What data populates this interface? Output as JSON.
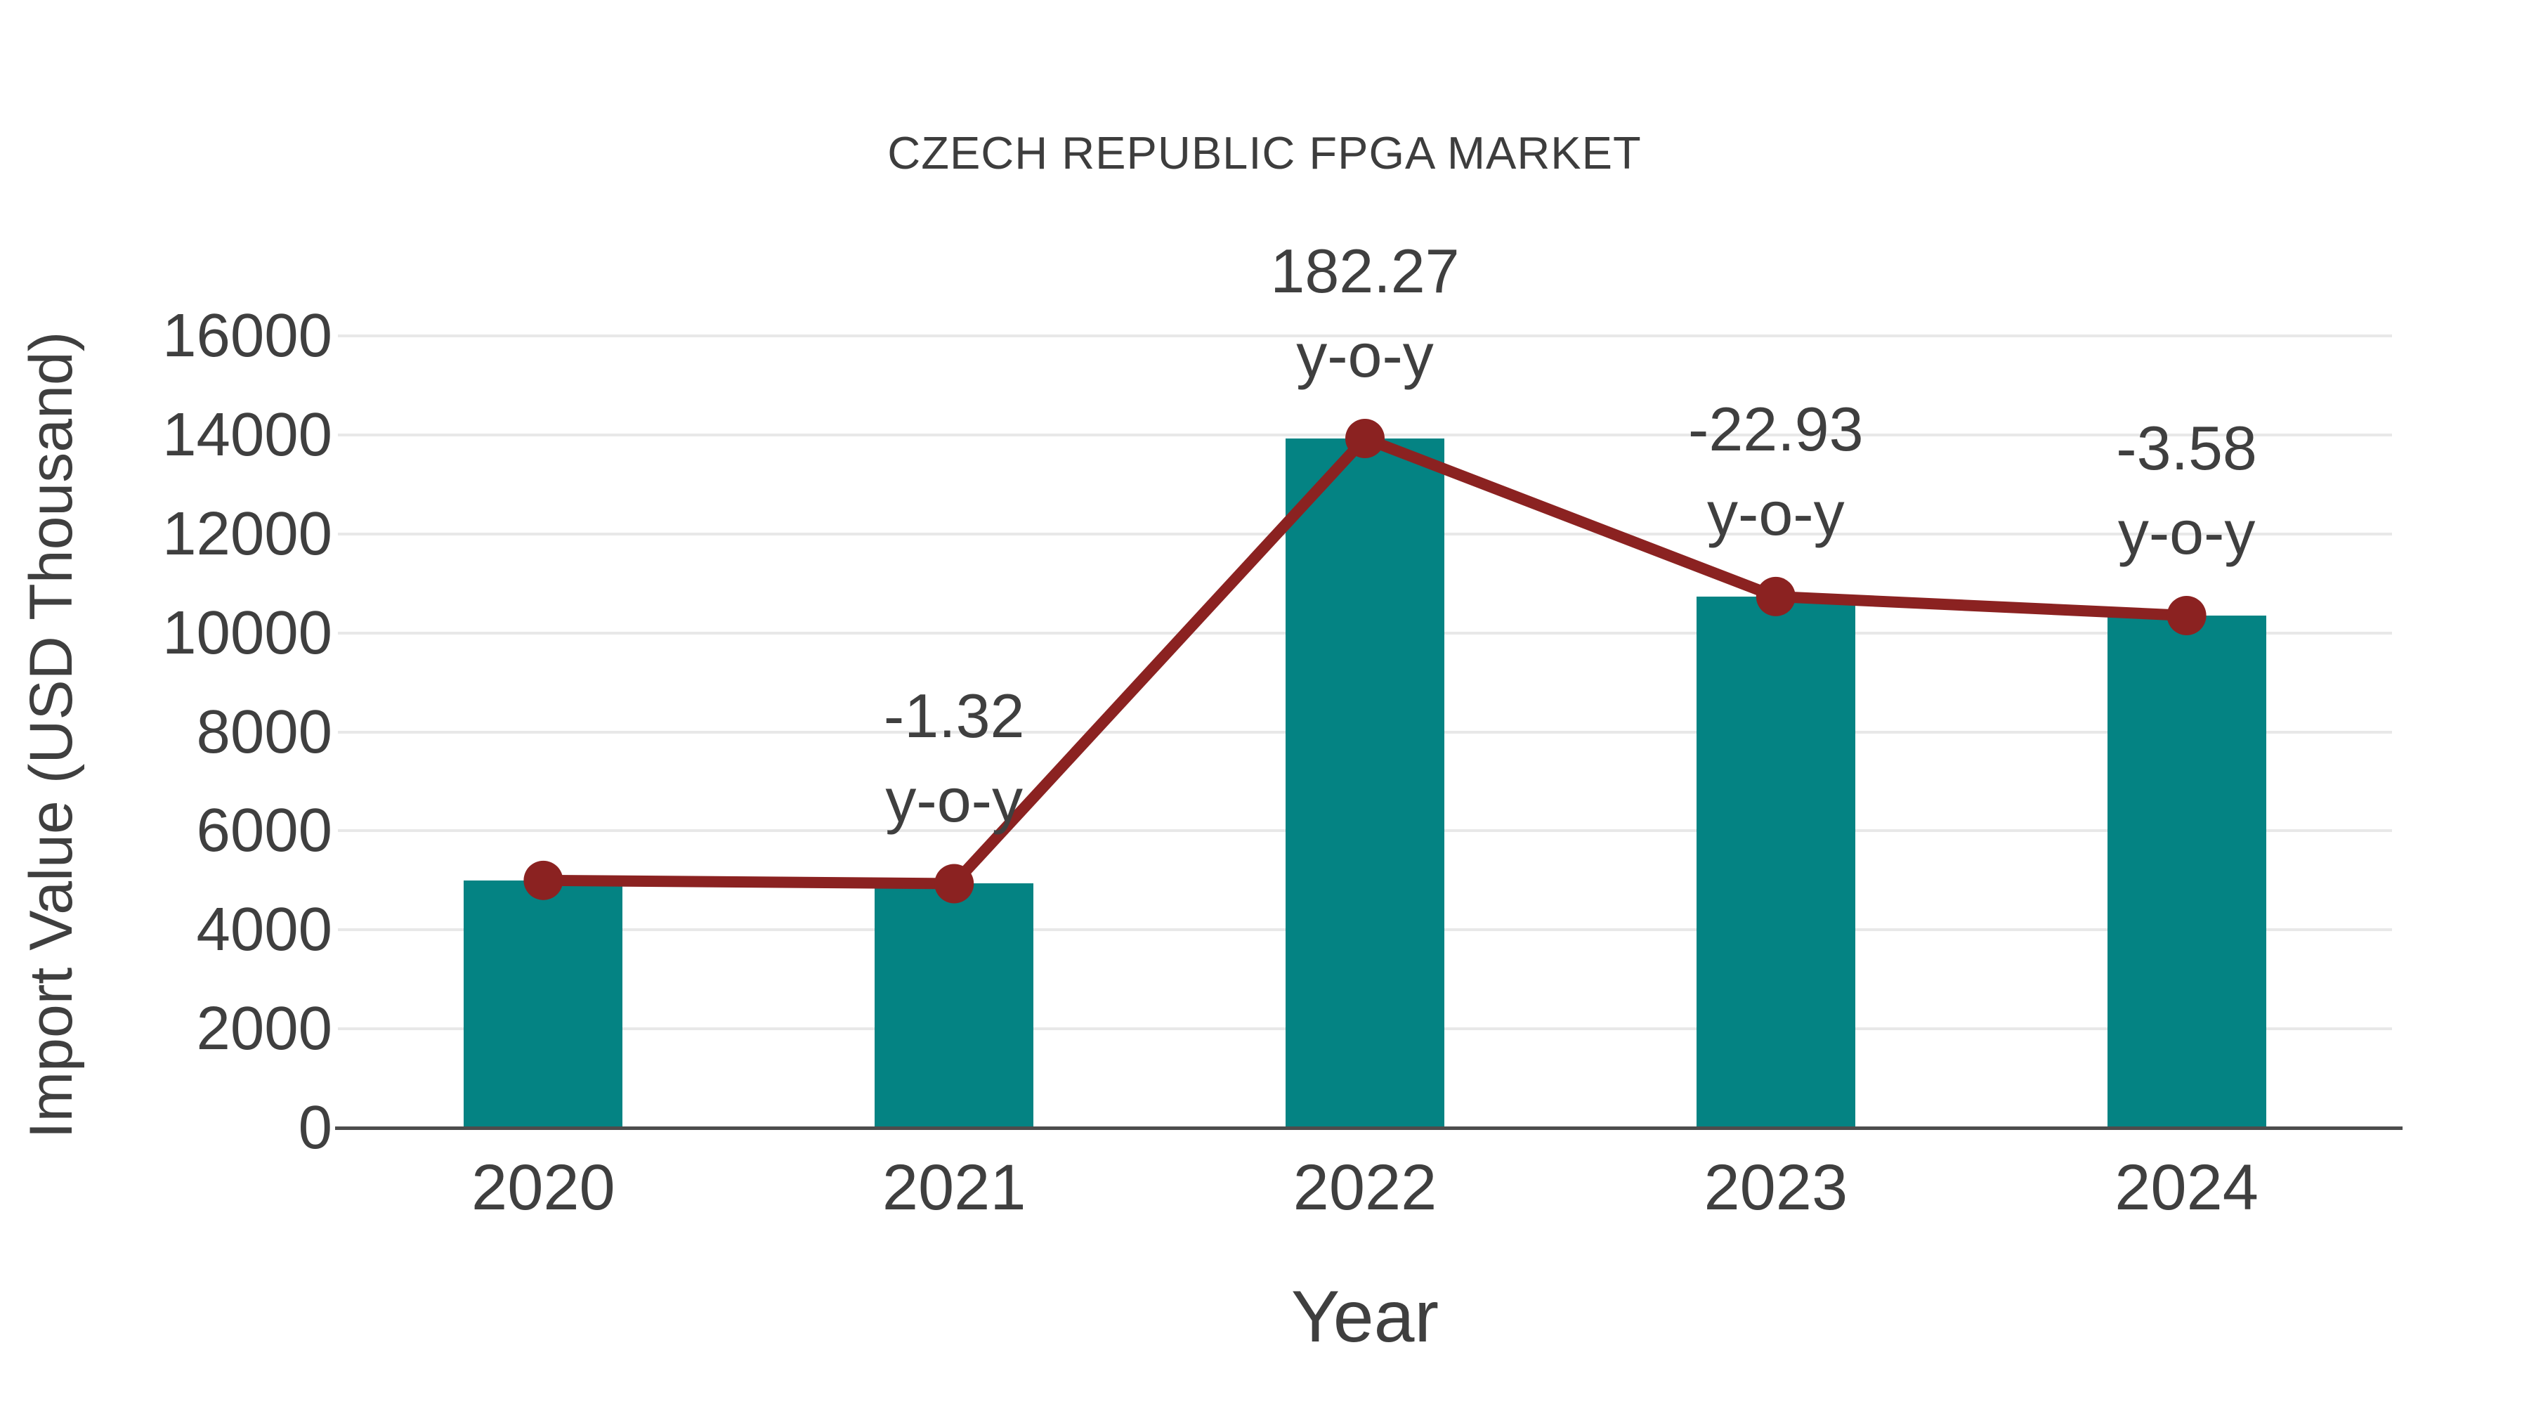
{
  "chart_data": {
    "type": "bar+line",
    "title": "CZECH REPUBLIC FPGA MARKET",
    "xlabel": "Year",
    "ylabel": "Import Value (USD Thousand)",
    "categories": [
      "2020",
      "2021",
      "2022",
      "2023",
      "2024"
    ],
    "series": [
      {
        "name": "Import Value bars",
        "type": "bar",
        "values": [
          5000,
          4934,
          13928,
          10734,
          10350
        ],
        "color": "#048383"
      },
      {
        "name": "Import Value trend line",
        "type": "line",
        "values": [
          5000,
          4934,
          13928,
          10734,
          10350
        ],
        "color": "#8B2221"
      }
    ],
    "annotations": [
      {
        "category": "2021",
        "value_label": "-1.32",
        "suffix_label": "y-o-y"
      },
      {
        "category": "2022",
        "value_label": "182.27",
        "suffix_label": "y-o-y"
      },
      {
        "category": "2023",
        "value_label": "-22.93",
        "suffix_label": "y-o-y"
      },
      {
        "category": "2024",
        "value_label": "-3.58",
        "suffix_label": "y-o-y"
      }
    ],
    "ylim": [
      0,
      16000
    ],
    "yticks": [
      0,
      2000,
      4000,
      6000,
      8000,
      10000,
      12000,
      14000,
      16000
    ],
    "grid": true,
    "legend_position": "none",
    "colors": {
      "bar": "#048383",
      "line": "#8B2221",
      "text": "#3f3f3f",
      "gridline": "#e8e8e8",
      "axis_line": "#4d4d4d",
      "background": "#ffffff"
    }
  }
}
